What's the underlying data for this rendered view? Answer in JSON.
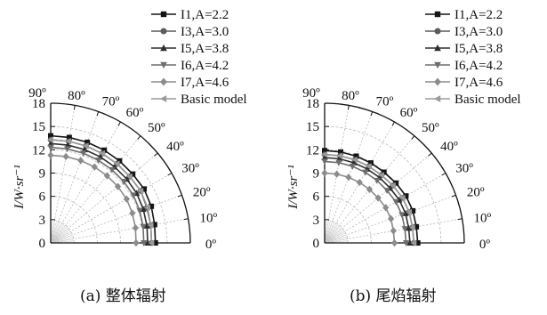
{
  "chart_data": [
    {
      "type": "polar-line",
      "caption": "(a) 整体辐射",
      "ylabel": "I/W·sr⁻¹",
      "radial_ticks": [
        0,
        3,
        6,
        9,
        12,
        15,
        18
      ],
      "angle_ticks": [
        "0º",
        "10º",
        "20º",
        "30º",
        "40º",
        "50º",
        "60º",
        "70º",
        "80º",
        "90º"
      ],
      "angles_deg": [
        0,
        10,
        20,
        30,
        40,
        50,
        60,
        70,
        80,
        90
      ],
      "grid": true,
      "series": [
        {
          "name": "I1,A=2.2",
          "marker": "square",
          "values": [
            13.5,
            13.6,
            13.8,
            13.9,
            13.8,
            13.8,
            13.8,
            13.8,
            13.8,
            13.8
          ]
        },
        {
          "name": "I3,A=3.0",
          "marker": "circle",
          "values": [
            13.0,
            13.1,
            13.2,
            13.4,
            13.3,
            13.3,
            13.3,
            13.3,
            13.3,
            13.3
          ]
        },
        {
          "name": "I5,A=3.8",
          "marker": "triangle",
          "values": [
            12.5,
            12.6,
            12.7,
            12.8,
            12.8,
            12.8,
            12.8,
            12.8,
            12.8,
            12.8
          ]
        },
        {
          "name": "I6,A=4.2",
          "marker": "tri-down",
          "values": [
            12.0,
            12.1,
            12.2,
            12.3,
            12.3,
            12.3,
            12.3,
            12.3,
            12.3,
            12.3
          ]
        },
        {
          "name": "I7,A=4.6",
          "marker": "diamond",
          "values": [
            11.0,
            11.1,
            11.2,
            11.3,
            11.3,
            11.3,
            11.3,
            11.3,
            11.3,
            11.3
          ]
        },
        {
          "name": "Basic model",
          "marker": "tri-left",
          "values": [
            13.0,
            13.1,
            13.3,
            13.4,
            13.3,
            13.3,
            13.3,
            13.3,
            13.3,
            13.3
          ]
        }
      ]
    },
    {
      "type": "polar-line",
      "caption": "(b) 尾焰辐射",
      "ylabel": "I/W·sr⁻¹",
      "radial_ticks": [
        0,
        3,
        6,
        9,
        12,
        15,
        18
      ],
      "angle_ticks": [
        "0º",
        "10º",
        "20º",
        "30º",
        "40º",
        "50º",
        "60º",
        "70º",
        "80º",
        "90º"
      ],
      "angles_deg": [
        0,
        10,
        20,
        30,
        40,
        50,
        60,
        70,
        80,
        90
      ],
      "grid": true,
      "series": [
        {
          "name": "I1,A=2.2",
          "marker": "square",
          "values": [
            12.0,
            12.0,
            12.1,
            12.1,
            12.0,
            11.9,
            11.9,
            11.9,
            11.9,
            11.9
          ]
        },
        {
          "name": "I3,A=3.0",
          "marker": "circle",
          "values": [
            11.5,
            11.5,
            11.6,
            11.6,
            11.5,
            11.4,
            11.4,
            11.4,
            11.4,
            11.4
          ]
        },
        {
          "name": "I5,A=3.8",
          "marker": "triangle",
          "values": [
            11.0,
            11.0,
            11.1,
            11.1,
            11.0,
            11.0,
            11.0,
            11.0,
            11.0,
            11.0
          ]
        },
        {
          "name": "I6,A=4.2",
          "marker": "tri-down",
          "values": [
            10.5,
            10.5,
            10.6,
            10.6,
            10.5,
            10.5,
            10.5,
            10.5,
            10.5,
            10.5
          ]
        },
        {
          "name": "I7,A=4.6",
          "marker": "diamond",
          "values": [
            9.0,
            9.0,
            9.1,
            9.1,
            9.0,
            9.0,
            9.0,
            9.0,
            9.0,
            9.0
          ]
        },
        {
          "name": "Basic model",
          "marker": "tri-left",
          "values": [
            11.5,
            11.5,
            11.6,
            11.6,
            11.5,
            11.4,
            11.4,
            11.4,
            11.4,
            11.4
          ]
        }
      ]
    }
  ],
  "series_colors": [
    "#151515",
    "#5c5c5c",
    "#2e2e2e",
    "#6e6e6e",
    "#8c8c8c",
    "#9a9a9a"
  ]
}
